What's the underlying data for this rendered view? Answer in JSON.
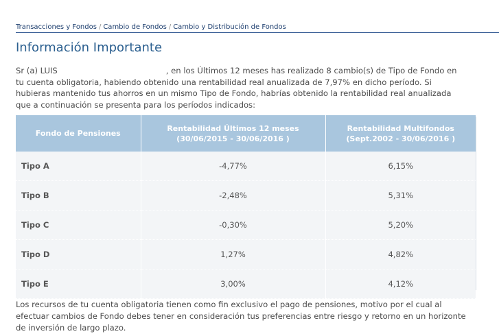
{
  "breadcrumb": {
    "items": [
      "Transacciones y Fondos",
      "Cambio de Fondos",
      "Cambio y Distribución de Fondos"
    ],
    "separator": "/"
  },
  "page_title": "Información Importante",
  "intro": {
    "prefix": "Sr (a) LUIS",
    "text": ", en los Últimos 12 meses has realizado 8 cambio(s) de Tipo de Fondo en tu cuenta obligatoria, habiendo obtenido una rentabilidad real anualizada de 7,97% en dicho período. Si hubieras mantenido tus ahorros en un mismo Tipo de Fondo, habrías obtenido la rentabilidad real anualizada que a continuación se presenta para los períodos indicados:"
  },
  "table": {
    "headers": [
      {
        "line1": "Fondo de Pensiones",
        "line2": ""
      },
      {
        "line1": "Rentabilidad Últimos 12 meses",
        "line2": "(30/06/2015 - 30/06/2016 )"
      },
      {
        "line1": "Rentabilidad Multifondos",
        "line2": "(Sept.2002 - 30/06/2016 )"
      }
    ],
    "rows": [
      {
        "fund": "Tipo A",
        "last12": "-4,77%",
        "multi": "6,15%"
      },
      {
        "fund": "Tipo B",
        "last12": "-2,48%",
        "multi": "5,31%"
      },
      {
        "fund": "Tipo C",
        "last12": "-0,30%",
        "multi": "5,20%"
      },
      {
        "fund": "Tipo D",
        "last12": "1,27%",
        "multi": "4,82%"
      },
      {
        "fund": "Tipo E",
        "last12": "3,00%",
        "multi": "4,12%"
      }
    ]
  },
  "footer": "Los recursos de tu cuenta obligatoria tienen como fin exclusivo el pago de pensiones, motivo por el cual al efectuar cambios de Fondo debes tener en consideración tus preferencias entre riesgo y retorno en un horizonte de inversión de largo plazo.",
  "colors": {
    "header_bg": "#a9c6de",
    "row_bg": "#f3f5f7",
    "title": "#2b5f8f",
    "breadcrumb_link": "#1d3e6e"
  }
}
